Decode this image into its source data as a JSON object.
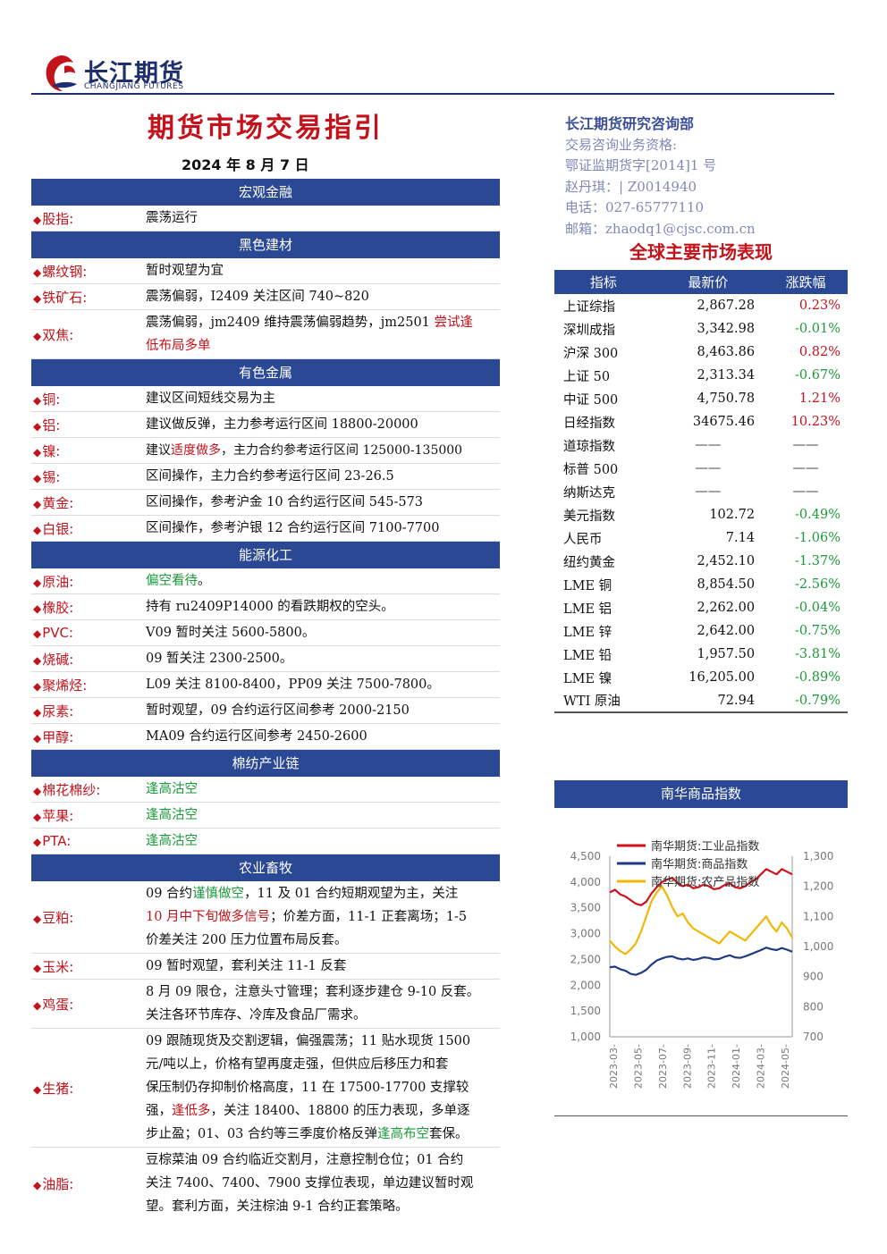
{
  "header": {
    "logo_cn": "长江期货",
    "logo_en": "CHANGJIANG FUTURES",
    "title": "期货市场交易指引",
    "date": "2024 年 8 月 7 日"
  },
  "contact": {
    "dept": "长江期货研究咨询部",
    "line1": "交易咨询业务资格:",
    "line2": "鄂证监期货字[2014]1 号",
    "line3": "赵丹琪：| Z0014940",
    "line4": "电话：027-65777110",
    "line5": "邮箱：zhaodq1@cjsc.com.cn"
  },
  "sections": {
    "macro": "宏观金融",
    "black": "黑色建材",
    "nonferrous": "有色金属",
    "energy": "能源化工",
    "cotton": "棉纺产业链",
    "agri": "农业畜牧"
  },
  "rows": {
    "stock": {
      "label": "股指:",
      "v1": "震荡运行"
    },
    "rebar": {
      "label": "螺纹钢:",
      "v1": "暂时观望为宜"
    },
    "iron": {
      "label": "铁矿石:",
      "v1": "震荡偏弱，I2409 关注区间 740~820"
    },
    "coke": {
      "label": "双焦:",
      "v1": "震荡偏弱，jm2409 维持震荡偏弱趋势，jm2501 ",
      "v2": "尝试逢",
      "v3": "低布局多单"
    },
    "copper": {
      "label": "铜:",
      "v1": "建议区间短线交易为主"
    },
    "alu": {
      "label": "铝:",
      "v1": "建议做反弹，主力参考运行区间 18800-20000"
    },
    "nickel": {
      "label": "镍:",
      "v1": "建议",
      "v2": "适度做多",
      "v3": "，主力合约参考运行区间 125000-135000"
    },
    "tin": {
      "label": "锡:",
      "v1": "区间操作，主力合约参考运行区间 23-26.5"
    },
    "gold": {
      "label": "黄金:",
      "v1": "区间操作，参考沪金 10 合约运行区间 545-573"
    },
    "silver": {
      "label": "白银:",
      "v1": "区间操作，参考沪银 12 合约运行区间 7100-7700"
    },
    "crude": {
      "label": "原油:",
      "v1": "偏空看待",
      "v2": "。"
    },
    "rubber": {
      "label": "橡胶:",
      "v1": "持有 ru2409P14000 的看跌期权的空头。"
    },
    "pvc": {
      "label": "PVC:",
      "v1": "V09 暂时关注 5600-5800。"
    },
    "caustic": {
      "label": "烧碱:",
      "v1": "09 暂关注 2300-2500。"
    },
    "polyolefin": {
      "label": "聚烯烃:",
      "v1": "L09 关注 8100-8400，PP09 关注 7500-7800。"
    },
    "urea": {
      "label": "尿素:",
      "v1": "暂时观望，09 合约运行区间参考 2000-2150"
    },
    "methanol": {
      "label": "甲醇:",
      "v1": "MA09 合约运行区间参考 2450-2600"
    },
    "cotton": {
      "label": "棉花棉纱:",
      "v1": "逢高沽空"
    },
    "apple": {
      "label": "苹果:",
      "v1": "逢高沽空"
    },
    "pta": {
      "label": "PTA:",
      "v1": "逢高沽空"
    },
    "meal": {
      "label": "豆粕:",
      "a1": "09 合约",
      "a2": "谨慎做空",
      "a3": "，11 及 01 合约短期观望为主，关注",
      "b1": "10 月中下旬做多信号",
      "b2": "；价差方面，11-1 正套离场；1-5",
      "c1": "价差关注 200 压力位置布局反套。"
    },
    "corn": {
      "label": "玉米:",
      "v1": "09 暂时观望，套利关注 11-1 反套"
    },
    "egg": {
      "label": "鸡蛋:",
      "a1": "8 月 09 限仓，注意头寸管理；套利逐步建仓 9-10 反套。",
      "b1": "关注各环节库存、冷库及食品厂需求。"
    },
    "hog": {
      "label": "生猪:",
      "a1": "09 跟随现货及交割逻辑，偏强震荡；11 贴水现货 1500",
      "b1": "元/吨以上，价格有望再度走强，但供应后移压力和套",
      "c1": "保压制仍存抑制价格高度，11 在 17500-17700 支撑较",
      "d1": "强，",
      "d2": "逢低多",
      "d3": "，关注 18400、18800 的压力表现，多单逐",
      "e1": "步止盈；01、03 合约等三季度价格反弹",
      "e2": "逢高布空",
      "e3": "套保。"
    },
    "oil": {
      "label": "油脂:",
      "a1": "豆棕菜油 09 合约临近交割月，注意控制仓位；01 合约",
      "b1": "关注 7400、7400、7900 支撑位表现，单边建议暂时观",
      "c1": "望。套利方面，关注棕油 9-1 合约正套策略。"
    }
  },
  "market": {
    "title": "全球主要市场表现",
    "headers": [
      "指标",
      "最新价",
      "涨跌幅"
    ],
    "items": [
      {
        "name": "上证综指",
        "price": "2,867.28",
        "change": "0.23%",
        "dir": "up"
      },
      {
        "name": "深圳成指",
        "price": "3,342.98",
        "change": "-0.01%",
        "dir": "down"
      },
      {
        "name": "沪深 300",
        "price": "8,463.86",
        "change": "0.82%",
        "dir": "up"
      },
      {
        "name": "上证 50",
        "price": "2,313.34",
        "change": "-0.67%",
        "dir": "down"
      },
      {
        "name": "中证 500",
        "price": "4,750.78",
        "change": "1.21%",
        "dir": "up"
      },
      {
        "name": "日经指数",
        "price": "34675.46",
        "change": "10.23%",
        "dir": "up"
      },
      {
        "name": "道琼指数",
        "price": "——",
        "change": "——",
        "dir": "none"
      },
      {
        "name": "标普 500",
        "price": "——",
        "change": "——",
        "dir": "none"
      },
      {
        "name": "纳斯达克",
        "price": "——",
        "change": "——",
        "dir": "none"
      },
      {
        "name": "美元指数",
        "price": "102.72",
        "change": "-0.49%",
        "dir": "down"
      },
      {
        "name": "人民币",
        "price": "7.14",
        "change": "-1.06%",
        "dir": "down"
      },
      {
        "name": "纽约黄金",
        "price": "2,452.10",
        "change": "-1.37%",
        "dir": "down"
      },
      {
        "name": "LME 铜",
        "price": "8,854.50",
        "change": "-2.56%",
        "dir": "down"
      },
      {
        "name": "LME 铝",
        "price": "2,262.00",
        "change": "-0.04%",
        "dir": "down"
      },
      {
        "name": "LME 锌",
        "price": "2,642.00",
        "change": "-0.75%",
        "dir": "down"
      },
      {
        "name": "LME 铅",
        "price": "1,957.50",
        "change": "-3.81%",
        "dir": "down"
      },
      {
        "name": "LME 镍",
        "price": "16,205.00",
        "change": "-0.89%",
        "dir": "down"
      },
      {
        "name": "WTI 原油",
        "price": "72.94",
        "change": "-0.79%",
        "dir": "down"
      }
    ]
  },
  "colors": {
    "up": "#c4121b",
    "down": "#1a9a3a",
    "header": "#2a4893"
  },
  "chart_data": {
    "type": "line",
    "title": "南华商品指数",
    "left_axis": {
      "ticks": [
        "4,500",
        "4,000",
        "3,500",
        "3,000",
        "2,500",
        "2,000",
        "1,500",
        "1,000"
      ],
      "range": [
        1000,
        4500
      ]
    },
    "right_axis": {
      "ticks": [
        "1,300",
        "1,200",
        "1,100",
        "1,000",
        "900",
        "800",
        "700"
      ],
      "range": [
        700,
        1300
      ]
    },
    "x_ticks": [
      "2023-03-",
      "2023-05-",
      "2023-07-",
      "2023-09-",
      "2023-11-",
      "2024-01-",
      "2024-03-",
      "2024-05-"
    ],
    "series": [
      {
        "name": "南华期货:工业品指数",
        "color": "#d0111b",
        "axis": "left",
        "values": [
          3800,
          3850,
          3760,
          3720,
          3650,
          3580,
          3550,
          3620,
          3780,
          3900,
          4000,
          4050,
          4080,
          3980,
          3920,
          3950,
          3880,
          3900,
          3950,
          3920,
          3860,
          3880,
          3940,
          3980,
          3900,
          3880,
          3920,
          4000,
          4050,
          4150,
          4250,
          4200,
          4150,
          4250,
          4200,
          4150
        ]
      },
      {
        "name": "南华期货:商品指数",
        "color": "#1f3a86",
        "axis": "left",
        "values": [
          2350,
          2360,
          2310,
          2280,
          2220,
          2200,
          2240,
          2300,
          2400,
          2480,
          2520,
          2550,
          2560,
          2520,
          2500,
          2520,
          2490,
          2510,
          2540,
          2530,
          2500,
          2510,
          2550,
          2580,
          2540,
          2530,
          2560,
          2600,
          2640,
          2680,
          2730,
          2700,
          2680,
          2720,
          2690,
          2650
        ]
      },
      {
        "name": "南华期货:农产品指数",
        "color": "#f2b705",
        "axis": "right",
        "values": [
          1020,
          1000,
          985,
          975,
          990,
          1010,
          1050,
          1100,
          1150,
          1180,
          1200,
          1170,
          1130,
          1100,
          1110,
          1080,
          1060,
          1050,
          1040,
          1030,
          1020,
          1010,
          1030,
          1050,
          1040,
          1030,
          1020,
          1040,
          1060,
          1080,
          1100,
          1070,
          1050,
          1080,
          1060,
          1030
        ]
      }
    ]
  }
}
